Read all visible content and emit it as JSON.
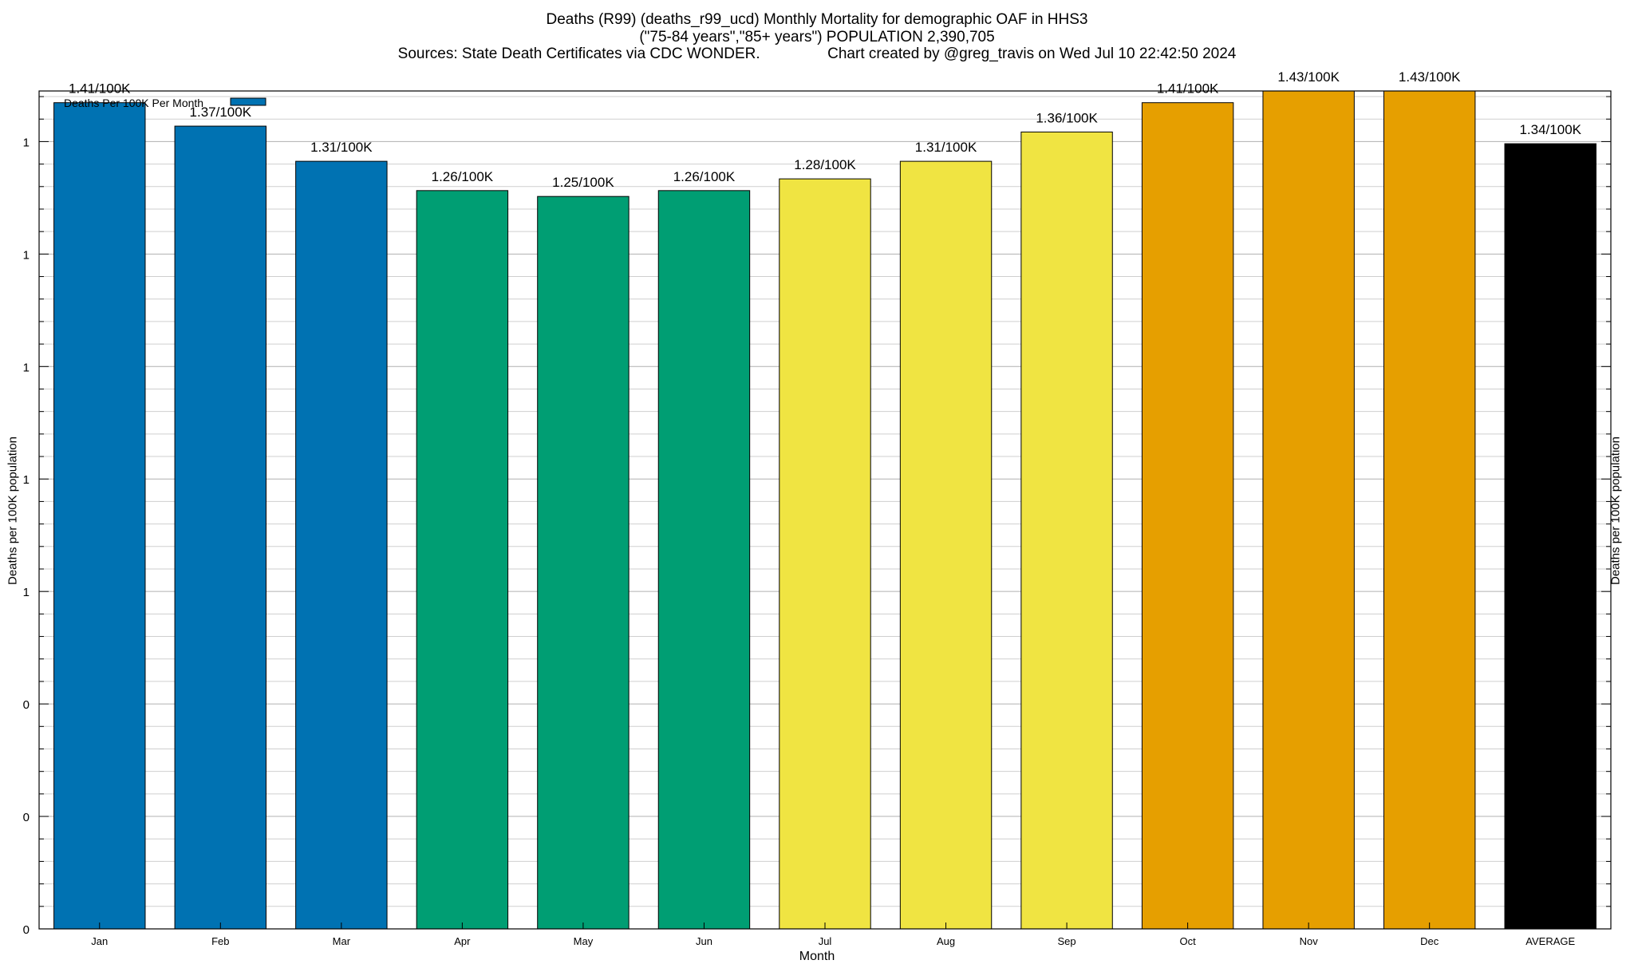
{
  "chart_data": {
    "type": "bar",
    "title": "Deaths (R99) (deaths_r99_ucd) Monthly Mortality for demographic OAF in HHS3",
    "subtitle": "(\"75-84 years\",\"85+ years\") POPULATION 2,390,705",
    "source_line": "Sources: State Death Certificates via CDC WONDER.                Chart created by @greg_travis on Wed Jul 10 22:42:50 2024",
    "xlabel": "Month",
    "ylabel": "Deaths per 100K population",
    "ylabel_right": "Deaths per 100K population",
    "legend": {
      "label": "Deaths Per 100K Per Month",
      "position": "top-left",
      "color": "#0072b2"
    },
    "ylim": [
      0,
      1.43
    ],
    "y_tick_labels": [
      "0",
      "0",
      "0",
      "1",
      "1",
      "1",
      "1",
      "1"
    ],
    "grid": true,
    "categories": [
      "Jan",
      "Feb",
      "Mar",
      "Apr",
      "May",
      "Jun",
      "Jul",
      "Aug",
      "Sep",
      "Oct",
      "Nov",
      "Dec",
      "AVERAGE"
    ],
    "values": [
      1.41,
      1.37,
      1.31,
      1.26,
      1.25,
      1.26,
      1.28,
      1.31,
      1.36,
      1.41,
      1.43,
      1.43,
      1.34
    ],
    "value_labels": [
      "1.41/100K",
      "1.37/100K",
      "1.31/100K",
      "1.26/100K",
      "1.25/100K",
      "1.26/100K",
      "1.28/100K",
      "1.31/100K",
      "1.36/100K",
      "1.41/100K",
      "1.43/100K",
      "1.43/100K",
      "1.34/100K"
    ],
    "bar_colors": [
      "#0072b2",
      "#0072b2",
      "#0072b2",
      "#009e73",
      "#009e73",
      "#009e73",
      "#f0e442",
      "#f0e442",
      "#f0e442",
      "#e69f00",
      "#e69f00",
      "#e69f00",
      "#000000"
    ]
  }
}
